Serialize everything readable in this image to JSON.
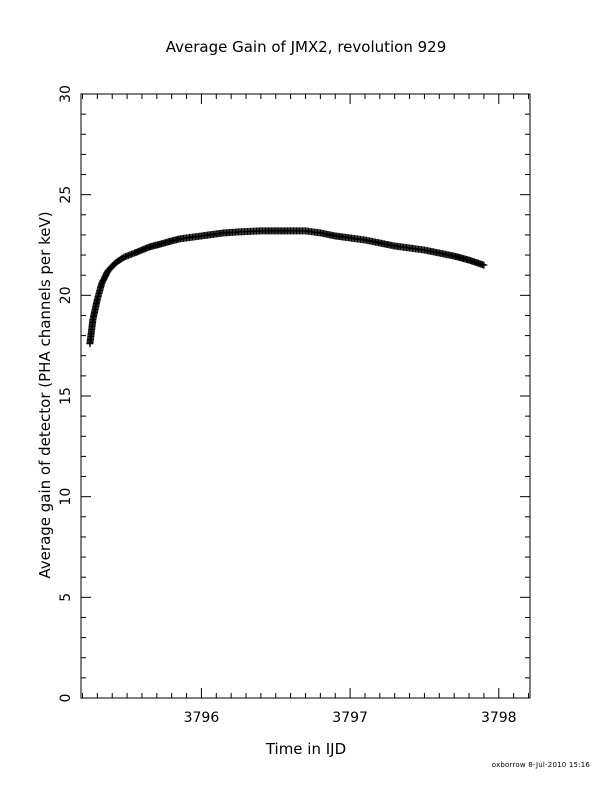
{
  "chart_data": {
    "type": "scatter",
    "title": "Average Gain of JMX2, revolution 929",
    "xlabel": "Time in IJD",
    "ylabel": "Average gain of detector (PHA channels per keV)",
    "xlim": [
      3795.19,
      3798.21
    ],
    "ylim": [
      0,
      30
    ],
    "x_ticks": [
      3796,
      3797,
      3798
    ],
    "y_ticks": [
      0,
      5,
      10,
      15,
      20,
      25,
      30
    ],
    "x_minor_step": 0.1,
    "y_minor_step": 1,
    "marker": "plus",
    "grid": false,
    "series": [
      {
        "x": [
          3795.25,
          3795.27,
          3795.3,
          3795.33,
          3795.37,
          3795.42,
          3795.48,
          3795.55,
          3795.65,
          3795.75,
          3795.85,
          3795.95,
          3796.05,
          3796.15,
          3796.25,
          3796.4,
          3796.55,
          3796.7,
          3796.8,
          3796.9,
          3797.0,
          3797.1,
          3797.2,
          3797.3,
          3797.4,
          3797.5,
          3797.6,
          3797.7,
          3797.8,
          3797.9
        ],
        "y": [
          17.6,
          18.8,
          19.8,
          20.6,
          21.2,
          21.6,
          21.9,
          22.1,
          22.4,
          22.6,
          22.8,
          22.9,
          23.0,
          23.1,
          23.15,
          23.2,
          23.2,
          23.2,
          23.1,
          22.95,
          22.85,
          22.75,
          22.6,
          22.45,
          22.35,
          22.25,
          22.1,
          21.95,
          21.75,
          21.5
        ]
      }
    ]
  },
  "footer": "oxborrow   8-Jul-2010 15:16"
}
